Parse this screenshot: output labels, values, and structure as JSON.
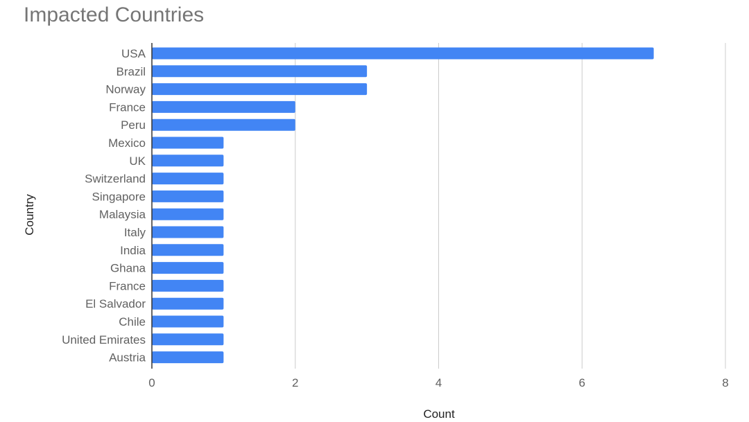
{
  "chart_data": {
    "type": "bar",
    "orientation": "horizontal",
    "title": "Impacted Countries",
    "xlabel": "Count",
    "ylabel": "Country",
    "xlim": [
      0,
      8
    ],
    "xticks": [
      0,
      2,
      4,
      6,
      8
    ],
    "grid": true,
    "legend": "none",
    "bar_color": "#4285f4",
    "categories": [
      "USA",
      "Brazil",
      "Norway",
      "France",
      "Peru",
      "Mexico",
      "UK",
      "Switzerland",
      "Singapore",
      "Malaysia",
      "Italy",
      "India",
      "Ghana",
      "France",
      "El Salvador",
      "Chile",
      "United Emirates",
      "Austria"
    ],
    "values": [
      7,
      3,
      3,
      2,
      2,
      1,
      1,
      1,
      1,
      1,
      1,
      1,
      1,
      1,
      1,
      1,
      1,
      1
    ]
  }
}
